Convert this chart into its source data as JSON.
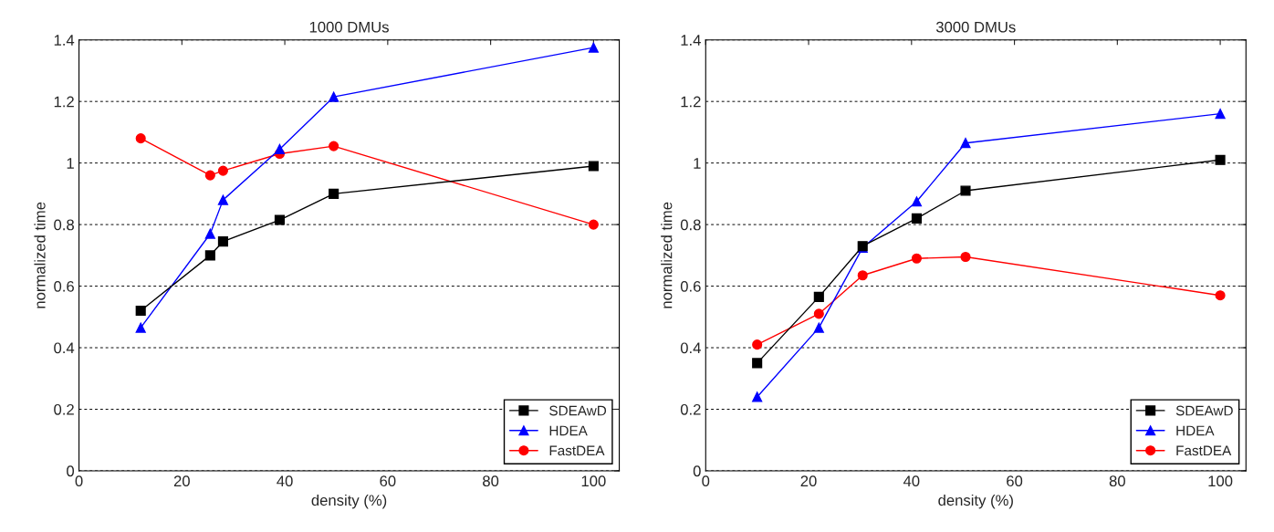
{
  "chart_data": [
    {
      "type": "line",
      "title": "1000 DMUs",
      "xlabel": "density (%)",
      "ylabel": "normalized time",
      "xlim": [
        0,
        105
      ],
      "ylim": [
        0,
        1.4
      ],
      "xticks": [
        0,
        20,
        40,
        60,
        80,
        100
      ],
      "yticks": [
        0,
        0.2,
        0.4,
        0.6,
        0.8,
        1,
        1.2,
        1.4
      ],
      "grid": "y",
      "legend": "bottom right",
      "series": [
        {
          "name": "SDEAwD",
          "color": "#000000",
          "marker": "square",
          "x": [
            12,
            25.5,
            28,
            39,
            49.5,
            100
          ],
          "values": [
            0.52,
            0.7,
            0.745,
            0.815,
            0.9,
            0.99
          ]
        },
        {
          "name": "HDEA",
          "color": "#0000ff",
          "marker": "triangle",
          "x": [
            12,
            25.5,
            28,
            39,
            49.5,
            100
          ],
          "values": [
            0.465,
            0.77,
            0.88,
            1.045,
            1.215,
            1.375
          ]
        },
        {
          "name": "FastDEA",
          "color": "#ff0000",
          "marker": "circle",
          "x": [
            12,
            25.5,
            28,
            39,
            49.5,
            100
          ],
          "values": [
            1.08,
            0.96,
            0.975,
            1.03,
            1.055,
            0.8
          ]
        }
      ]
    },
    {
      "type": "line",
      "title": "3000 DMUs",
      "xlabel": "density (%)",
      "ylabel": "normalized time",
      "xlim": [
        0,
        105
      ],
      "ylim": [
        0,
        1.4
      ],
      "xticks": [
        0,
        20,
        40,
        60,
        80,
        100
      ],
      "yticks": [
        0,
        0.2,
        0.4,
        0.6,
        0.8,
        1,
        1.2,
        1.4
      ],
      "grid": "y",
      "legend": "bottom right",
      "series": [
        {
          "name": "SDEAwD",
          "color": "#000000",
          "marker": "square",
          "x": [
            10,
            22,
            30.5,
            41,
            50.5,
            100
          ],
          "values": [
            0.35,
            0.565,
            0.73,
            0.82,
            0.91,
            1.01
          ]
        },
        {
          "name": "HDEA",
          "color": "#0000ff",
          "marker": "triangle",
          "x": [
            10,
            22,
            30.5,
            41,
            50.5,
            100
          ],
          "values": [
            0.24,
            0.465,
            0.725,
            0.875,
            1.065,
            1.16
          ]
        },
        {
          "name": "FastDEA",
          "color": "#ff0000",
          "marker": "circle",
          "x": [
            10,
            22,
            30.5,
            41,
            50.5,
            100
          ],
          "values": [
            0.41,
            0.51,
            0.635,
            0.69,
            0.695,
            0.57
          ]
        }
      ]
    }
  ]
}
